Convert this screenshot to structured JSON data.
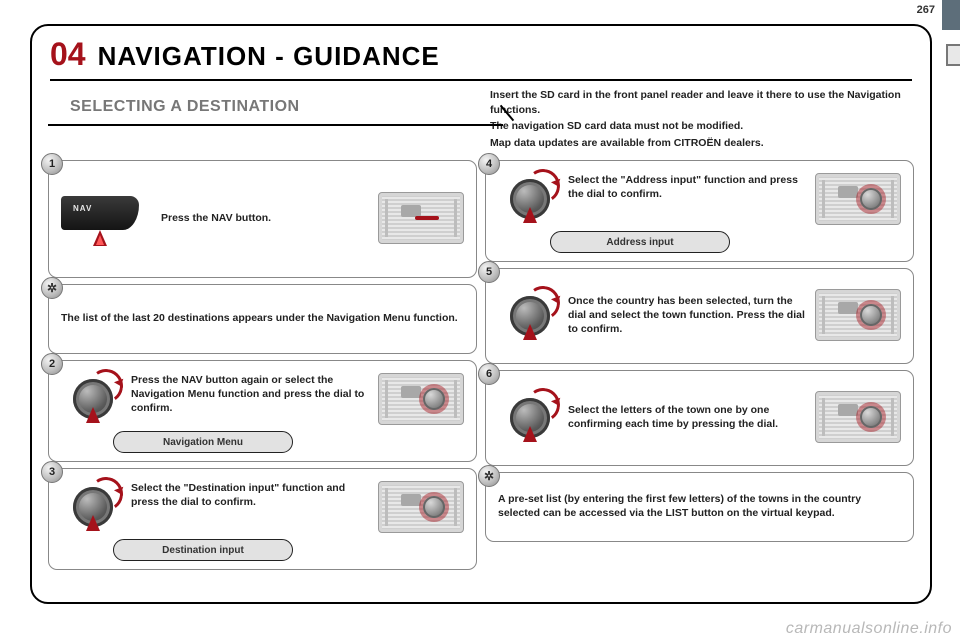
{
  "page_number": "267",
  "section_number": "04",
  "section_title": "NAVIGATION - GUIDANCE",
  "subtitle": "SELECTING A DESTINATION",
  "intro": {
    "l1": "Insert the SD card in the front panel reader and leave it there to use the Navigation functions.",
    "l2": "The navigation SD card data must not be modified.",
    "l3": "Map data updates are available from CITROËN dealers."
  },
  "steps": {
    "s1": {
      "num": "1",
      "text": "Press the NAV button.",
      "nav_label": "NAV"
    },
    "tipA": {
      "text": "The list of the last 20 destinations appears under the Navigation Menu function."
    },
    "s2": {
      "num": "2",
      "text": "Press the NAV button again or select the Navigation Menu function and press the dial to confirm.",
      "pill": "Navigation Menu"
    },
    "s3": {
      "num": "3",
      "text": "Select the \"Destination input\" function and press the dial to confirm.",
      "pill": "Destination input"
    },
    "s4": {
      "num": "4",
      "text": "Select the \"Address input\" function and press the dial to confirm.",
      "pill": "Address input"
    },
    "s5": {
      "num": "5",
      "text": "Once the country has been selected, turn the dial and select the town function. Press the dial to confirm."
    },
    "s6": {
      "num": "6",
      "text": "Select the letters of the town one by one confirming each time by pressing the dial."
    },
    "tipB": {
      "text": "A pre-set list (by entering the first few letters) of the towns in the country selected can be accessed via the LIST button on the virtual keypad."
    }
  },
  "watermark": "carmanualsonline.info",
  "colors": {
    "accent": "#a5121b",
    "gray_text": "#777777",
    "border": "#888888"
  },
  "typography": {
    "section_num_pt": 32,
    "section_title_pt": 26,
    "subtitle_pt": 16,
    "body_pt": 10.5
  }
}
